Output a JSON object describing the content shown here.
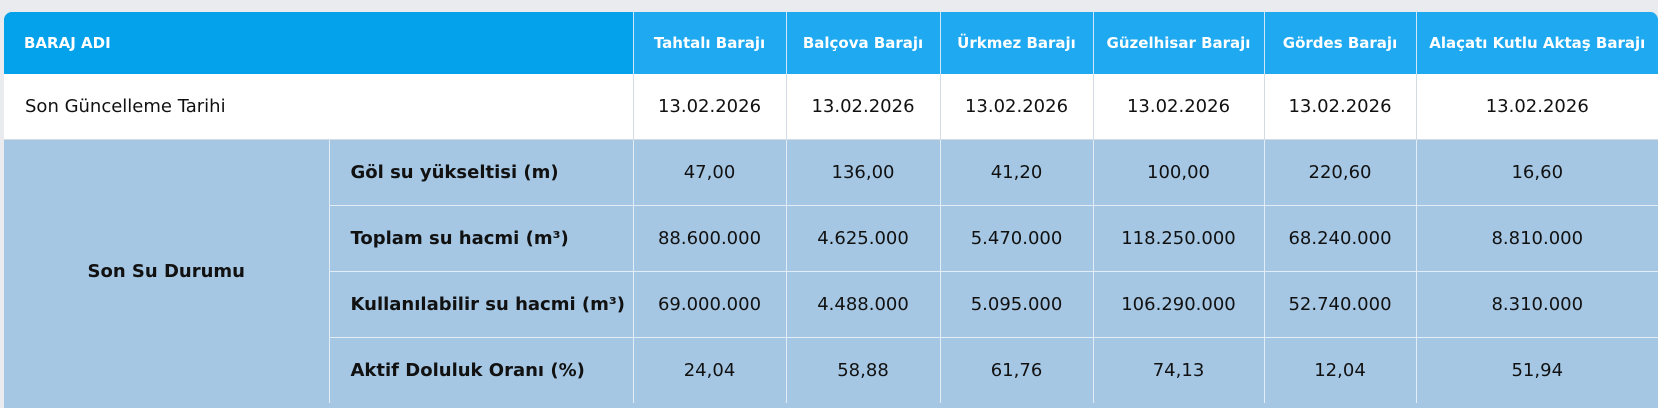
{
  "table": {
    "header": {
      "name_label": "BARAJ ADI",
      "dams": [
        "Tahtalı Barajı",
        "Balçova Barajı",
        "Ürkmez Barajı",
        "Güzelhisar Barajı",
        "Gördes Barajı",
        "Alaçatı Kutlu Aktaş Barajı"
      ]
    },
    "update_row": {
      "label": "Son Güncelleme Tarihi",
      "values": [
        "13.02.2026",
        "13.02.2026",
        "13.02.2026",
        "13.02.2026",
        "13.02.2026",
        "13.02.2026"
      ]
    },
    "water_status": {
      "group_label": "Son Su Durumu",
      "rows": [
        {
          "label": "Göl su yükseltisi (m)",
          "values": [
            "47,00",
            "136,00",
            "41,20",
            "100,00",
            "220,60",
            "16,60"
          ]
        },
        {
          "label": "Toplam su hacmi (m³)",
          "values": [
            "88.600.000",
            "4.625.000",
            "5.470.000",
            "118.250.000",
            "68.240.000",
            "8.810.000"
          ]
        },
        {
          "label": "Kullanılabilir su hacmi (m³)",
          "values": [
            "69.000.000",
            "4.488.000",
            "5.095.000",
            "106.290.000",
            "52.740.000",
            "8.310.000"
          ]
        },
        {
          "label": "Aktif Doluluk Oranı (%)",
          "values": [
            "24,04",
            "58,88",
            "61,76",
            "74,13",
            "12,04",
            "51,94"
          ]
        }
      ]
    }
  },
  "colors": {
    "header_primary": "#05a2ec",
    "header_secondary": "#1ea9f0",
    "row_white": "#ffffff",
    "row_blue": "#a5c7e4"
  }
}
